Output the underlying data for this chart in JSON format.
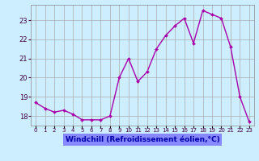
{
  "x": [
    0,
    1,
    2,
    3,
    4,
    5,
    6,
    7,
    8,
    9,
    10,
    11,
    12,
    13,
    14,
    15,
    16,
    17,
    18,
    19,
    20,
    21,
    22,
    23
  ],
  "y": [
    18.7,
    18.4,
    18.2,
    18.3,
    18.1,
    17.8,
    17.8,
    17.8,
    18.0,
    20.0,
    21.0,
    19.8,
    20.3,
    21.5,
    22.2,
    22.7,
    23.1,
    21.8,
    23.5,
    23.3,
    23.1,
    21.6,
    19.0,
    17.7
  ],
  "line_color": "#aa00aa",
  "marker_color": "#aa00aa",
  "bg_color": "#cceeff",
  "grid_color": "#aaaaaa",
  "xlabel": "Windchill (Refroidissement éolien,°C)",
  "xlabel_color": "#0000aa",
  "xlabel_bg": "#8888ff",
  "ylabel_ticks": [
    18,
    19,
    20,
    21,
    22,
    23
  ],
  "xtick_labels": [
    "0",
    "1",
    "2",
    "3",
    "4",
    "5",
    "6",
    "7",
    "8",
    "9",
    "10",
    "11",
    "12",
    "13",
    "14",
    "15",
    "16",
    "17",
    "18",
    "19",
    "20",
    "21",
    "22",
    "23"
  ],
  "ylim": [
    17.5,
    23.8
  ],
  "xlim": [
    -0.5,
    23.5
  ]
}
